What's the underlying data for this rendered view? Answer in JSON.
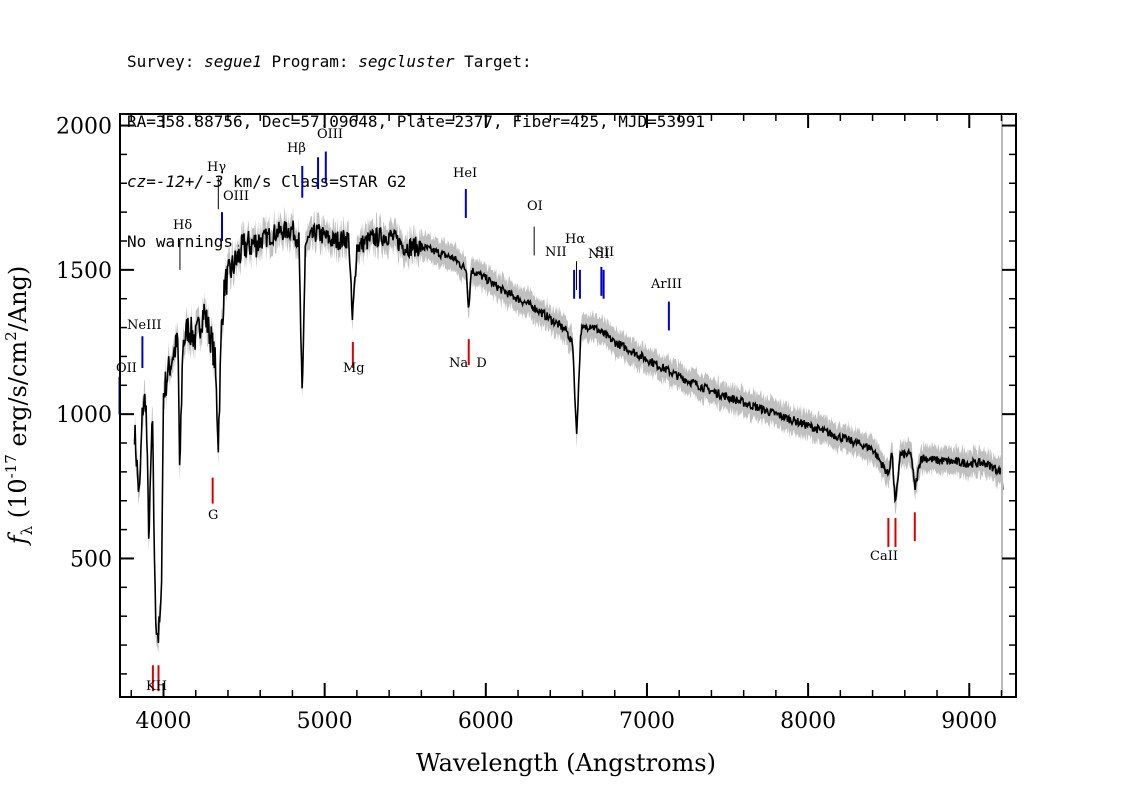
{
  "header": {
    "line1": {
      "survey_label": "Survey: ",
      "survey": "segue1",
      "program_label": " Program: ",
      "program": "segcluster",
      "target_label": " Target:"
    },
    "line2": "RA=358.88756, Dec=57.09648, Plate=2377, Fiber=425, MJD=53991",
    "line3": {
      "cz_label": "cz=",
      "cz_value": "-12+/-3",
      "cz_units": " km/s Class=STAR G2"
    },
    "line4": "No warnings."
  },
  "colors": {
    "flux": "#000000",
    "error": "#c0c0c0",
    "emission": "#0000cc",
    "absorption": "#dd0000",
    "neutral": "#000000"
  },
  "chart_data": {
    "type": "line",
    "title": "",
    "xlabel": "Wavelength (Angstroms)",
    "ylabel_parts": {
      "f": "f",
      "sub": "λ",
      "rest": " (10",
      "sup1": "-17",
      "mid": " erg/s/cm",
      "sup2": "2",
      "end": "/Ang)"
    },
    "xlim": [
      3730,
      9290
    ],
    "ylim": [
      20,
      2040
    ],
    "x_ticks": [
      4000,
      5000,
      6000,
      7000,
      8000,
      9000
    ],
    "x_tick_labels": [
      "4000",
      "5000",
      "6000",
      "7000",
      "8000",
      "9000"
    ],
    "y_ticks": [
      500,
      1000,
      1500,
      2000
    ],
    "y_tick_labels": [
      "500",
      "1000",
      "1500",
      "2000"
    ],
    "spectrum_anchors": {
      "x": [
        3820,
        3850,
        3870,
        3890,
        3910,
        3930,
        3950,
        3968,
        3985,
        4000,
        4030,
        4060,
        4090,
        4101,
        4120,
        4150,
        4200,
        4250,
        4300,
        4320,
        4340,
        4360,
        4380,
        4420,
        4500,
        4600,
        4700,
        4800,
        4840,
        4861,
        4880,
        4950,
        5050,
        5150,
        5172,
        5200,
        5300,
        5400,
        5500,
        5600,
        5700,
        5800,
        5880,
        5893,
        5910,
        6000,
        6100,
        6200,
        6300,
        6400,
        6500,
        6540,
        6563,
        6590,
        6650,
        6800,
        7000,
        7200,
        7400,
        7600,
        7800,
        8000,
        8200,
        8400,
        8498,
        8520,
        8542,
        8570,
        8640,
        8662,
        8700,
        8800,
        9000,
        9100,
        9200,
        9210
      ],
      "y": [
        950,
        700,
        1020,
        1060,
        560,
        1000,
        300,
        230,
        320,
        1070,
        1150,
        1210,
        1250,
        780,
        1240,
        1300,
        1260,
        1360,
        1250,
        1180,
        900,
        1300,
        1450,
        1500,
        1580,
        1600,
        1630,
        1640,
        1600,
        1030,
        1590,
        1630,
        1600,
        1610,
        1320,
        1580,
        1610,
        1620,
        1580,
        1580,
        1560,
        1540,
        1500,
        1360,
        1500,
        1470,
        1430,
        1400,
        1370,
        1330,
        1290,
        1240,
        920,
        1290,
        1310,
        1250,
        1190,
        1130,
        1080,
        1040,
        1000,
        960,
        920,
        880,
        790,
        870,
        680,
        860,
        860,
        740,
        850,
        840,
        830,
        830,
        800,
        730
      ],
      "error_band": 45
    },
    "emission_lines": [
      {
        "label": "OII",
        "x": 3727,
        "y_top": 1130,
        "y_bottom": 1000,
        "tick_color": "blue"
      },
      {
        "label": "NeIII",
        "x": 3869,
        "y_top": 1270,
        "y_bottom": 1160,
        "tick_color": "blue"
      },
      {
        "label": "Hδ",
        "x": 4102,
        "y_top": 1600,
        "y_bottom": 1500,
        "tick_color": "black"
      },
      {
        "label": "Hγ",
        "x": 4340,
        "y_top": 1820,
        "y_bottom": 1710,
        "tick_color": "black"
      },
      {
        "label": "OIII",
        "x": 4363,
        "y_top": 1700,
        "y_bottom": 1600,
        "tick_color": "blue"
      },
      {
        "label": "Hβ",
        "x": 4861,
        "y_top": 1860,
        "y_bottom": 1750,
        "tick_color": "blue"
      },
      {
        "label": "OIII",
        "x": 4959,
        "y_top": 1890,
        "y_bottom": 1780,
        "tick_color": "blue"
      },
      {
        "label": "",
        "x": 5007,
        "y_top": 1910,
        "y_bottom": 1800,
        "tick_color": "blue"
      },
      {
        "label": "HeI",
        "x": 5876,
        "y_top": 1780,
        "y_bottom": 1680,
        "tick_color": "blue"
      },
      {
        "label": "OI",
        "x": 6300,
        "y_top": 1650,
        "y_bottom": 1550,
        "tick_color": "black"
      },
      {
        "label": "NII",
        "x": 6548,
        "y_top": 1500,
        "y_bottom": 1400,
        "tick_color": "blue"
      },
      {
        "label": "Hα",
        "x": 6563,
        "y_top": 1530,
        "y_bottom": 1430,
        "tick_color": "black"
      },
      {
        "label": "NII",
        "x": 6584,
        "y_top": 1500,
        "y_bottom": 1400,
        "tick_color": "blue"
      },
      {
        "label": "SII",
        "x": 6717,
        "y_top": 1510,
        "y_bottom": 1410,
        "tick_color": "blue"
      },
      {
        "label": "",
        "x": 6731,
        "y_top": 1500,
        "y_bottom": 1400,
        "tick_color": "blue"
      },
      {
        "label": "ArIII",
        "x": 7136,
        "y_top": 1390,
        "y_bottom": 1290,
        "tick_color": "blue"
      }
    ],
    "absorption_lines": [
      {
        "label": "K",
        "x": 3934,
        "y_top": 130,
        "y_bottom": 40
      },
      {
        "label": "H",
        "x": 3969,
        "y_top": 130,
        "y_bottom": 40
      },
      {
        "label": "G",
        "x": 4305,
        "y_top": 780,
        "y_bottom": 690
      },
      {
        "label": "Mg",
        "x": 5175,
        "y_top": 1250,
        "y_bottom": 1160
      },
      {
        "label": "Na D",
        "x": 5894,
        "y_top": 1260,
        "y_bottom": 1170
      },
      {
        "label": "CaII",
        "x": 8498,
        "y_top": 640,
        "y_bottom": 540
      },
      {
        "label": "",
        "x": 8542,
        "y_top": 640,
        "y_bottom": 540
      },
      {
        "label": "",
        "x": 8662,
        "y_top": 660,
        "y_bottom": 560
      }
    ],
    "label_texts": {
      "OII": "OII",
      "NeIII": "NeIII",
      "Hd": "Hδ",
      "Hg": "Hγ",
      "OIII_a": "OIII",
      "Hb": "Hβ",
      "OIII_b": "OIII",
      "HeI": "HeI",
      "OI": "OI",
      "NII_a": "NII",
      "Ha": "Hα",
      "NII_b": "NII",
      "SII": "SII",
      "ArIII": "ArIII",
      "KH": "KH",
      "G": "G",
      "Mg": "Mg",
      "NaD": "Na  D",
      "CaII": "CaII"
    }
  }
}
